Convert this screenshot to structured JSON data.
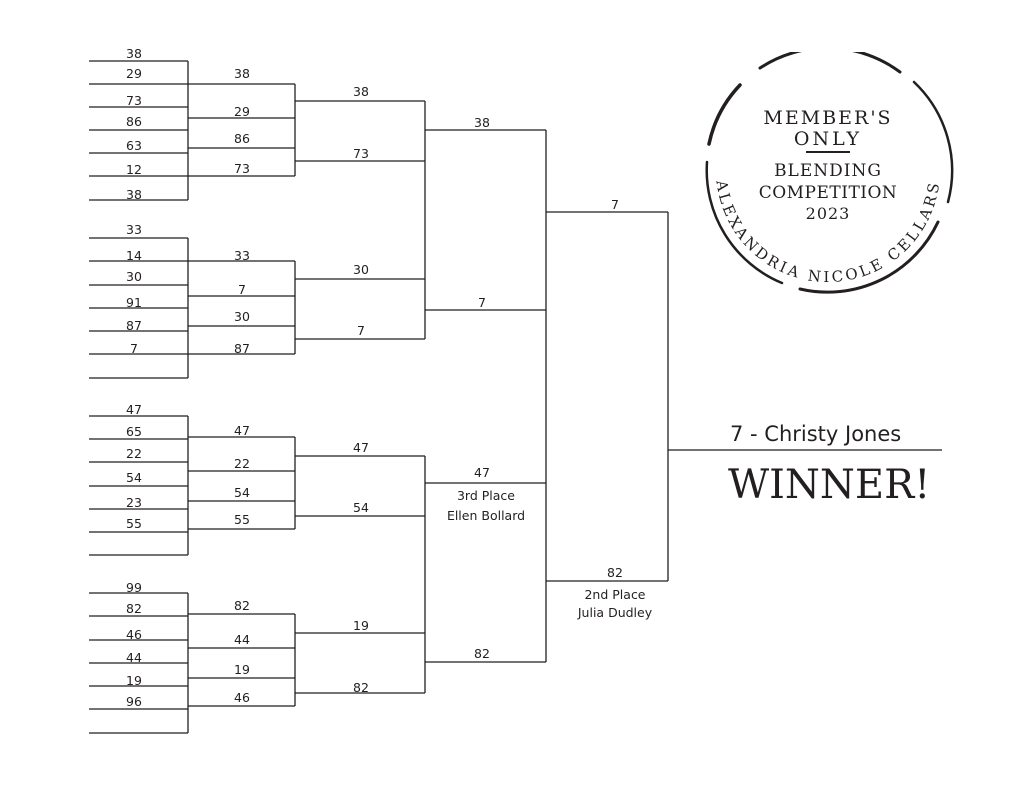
{
  "round1": [
    [
      "38",
      "29",
      "73",
      "86",
      "63",
      "12",
      "38"
    ],
    [
      "33",
      "14",
      "30",
      "91",
      "87",
      "7"
    ],
    [
      "47",
      "65",
      "22",
      "54",
      "23",
      "55"
    ],
    [
      "99",
      "82",
      "46",
      "44",
      "19",
      "96"
    ]
  ],
  "round2": [
    [
      "38",
      "29",
      "86",
      "73"
    ],
    [
      "33",
      "7",
      "30",
      "87"
    ],
    [
      "47",
      "22",
      "54",
      "55"
    ],
    [
      "82",
      "44",
      "19",
      "46"
    ]
  ],
  "round3": [
    "38",
    "73",
    "30",
    "7",
    "47",
    "54",
    "19",
    "82"
  ],
  "semifinal": [
    "38",
    "7",
    "47",
    "82"
  ],
  "final": [
    "7",
    "82"
  ],
  "third_place": {
    "label": "3rd Place",
    "name": "Ellen Bollard"
  },
  "second_place": {
    "label": "2nd Place",
    "name": "Julia Dudley"
  },
  "champion": "7 - Christy Jones",
  "winner_label": "WINNER!",
  "logo": {
    "line1": "MEMBER'S",
    "line2": "ONLY",
    "line3": "BLENDING",
    "line4": "COMPETITION",
    "line5": "2023",
    "arc_text": "ALEXANDRIA NICOLE CELLARS"
  },
  "colors": {
    "ink": "#231f20"
  }
}
